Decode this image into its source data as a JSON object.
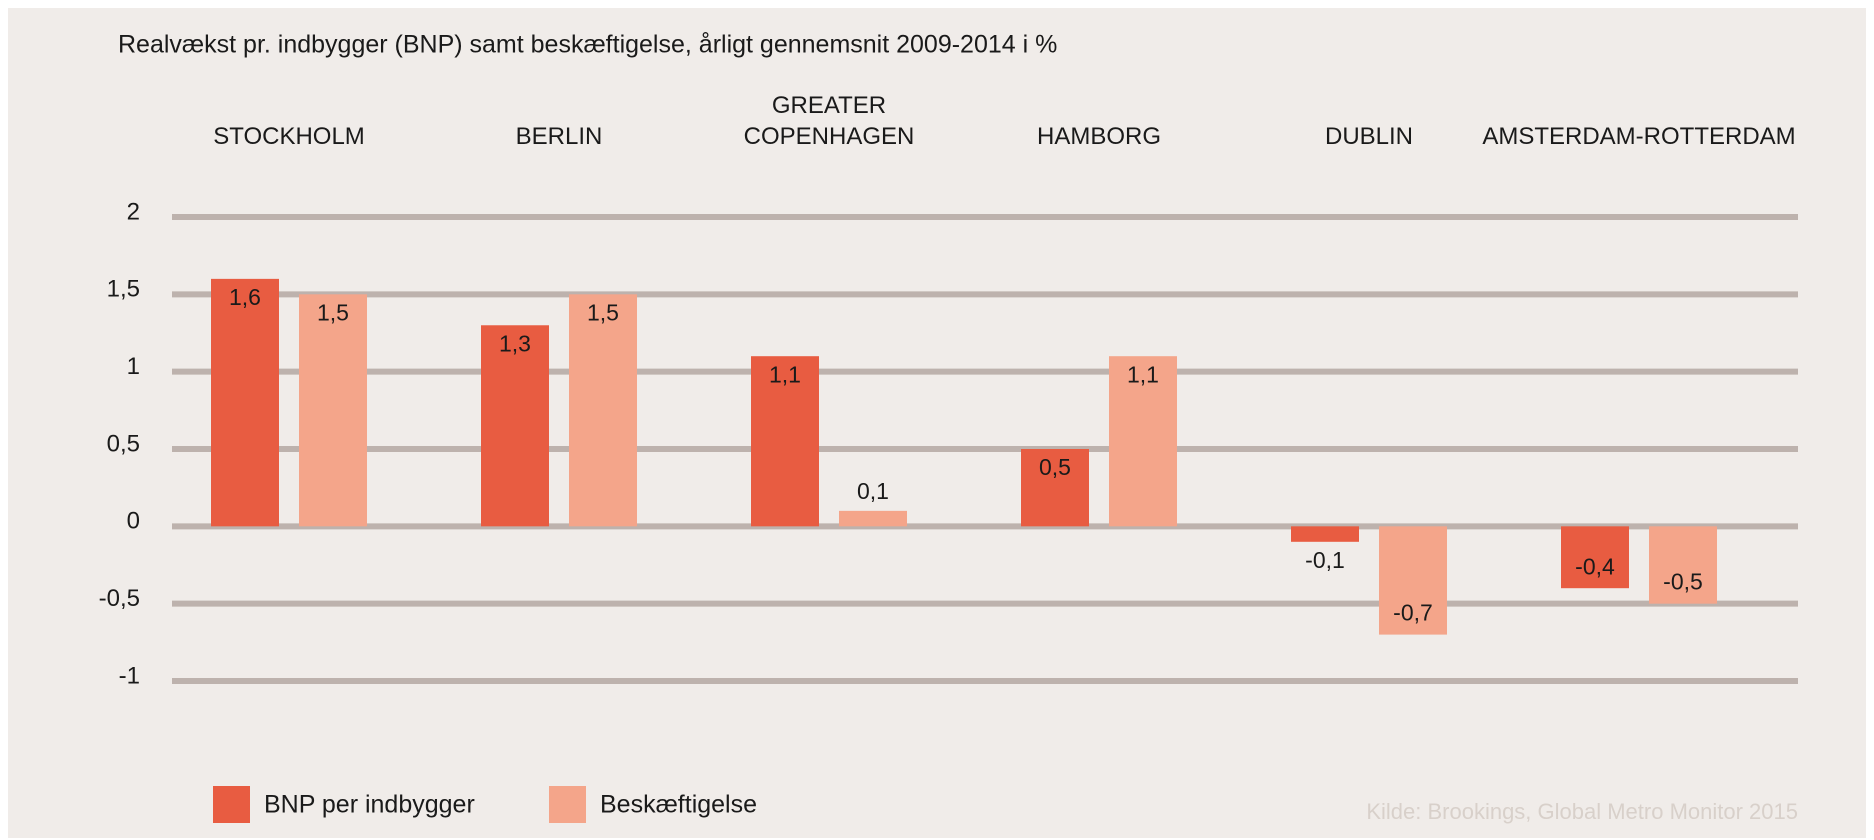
{
  "chart_data": {
    "type": "bar",
    "title": "Realvækst pr. indbygger (BNP) samt beskæftigelse, årligt gennemsnit 2009-2014 i %",
    "categories": [
      "STOCKHOLM",
      "BERLIN",
      "GREATER COPENHAGEN",
      "HAMBORG",
      "DUBLIN",
      "AMSTERDAM-ROTTERDAM"
    ],
    "series": [
      {
        "name": "BNP per indbygger",
        "color": "#e85c41",
        "values": [
          1.6,
          1.3,
          1.1,
          0.5,
          -0.1,
          -0.4
        ],
        "value_labels": [
          "1,6",
          "1,3",
          "1,1",
          "0,5",
          "-0,1",
          "-0,4"
        ]
      },
      {
        "name": "Beskæftigelse",
        "color": "#f4a58a",
        "values": [
          1.5,
          1.5,
          0.1,
          1.1,
          -0.7,
          -0.5
        ],
        "value_labels": [
          "1,5",
          "1,5",
          "0,1",
          "1,1",
          "-0,7",
          "-0,5"
        ]
      }
    ],
    "ylim": [
      -1,
      2
    ],
    "yticks": [
      -1,
      {
        "value": -0.5,
        "label": "-0,5"
      },
      0,
      {
        "value": 0.5,
        "label": "0,5"
      },
      1,
      {
        "value": 1.5,
        "label": "1,5"
      },
      2
    ],
    "grid": true,
    "legend": "bottom-left",
    "source": "Kilde: Brookings, Global Metro Monitor 2015"
  }
}
